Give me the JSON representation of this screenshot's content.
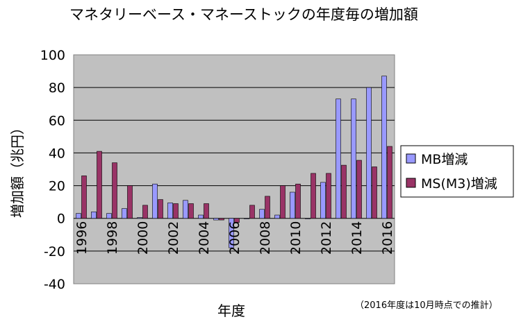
{
  "chart_data": {
    "type": "bar",
    "title": "マネタリーベース・マネーストックの年度毎の増加額",
    "xlabel": "年度",
    "ylabel": "増加額（兆円）",
    "note": "（2016年度は10月時点での推計）",
    "ylim": [
      -40,
      100
    ],
    "yticks": [
      -40,
      -20,
      0,
      20,
      40,
      60,
      80,
      100
    ],
    "grid": true,
    "legend_position": "right",
    "categories": [
      "1996",
      "1997",
      "1998",
      "1999",
      "2000",
      "2001",
      "2002",
      "2003",
      "2004",
      "2005",
      "2006",
      "2007",
      "2008",
      "2009",
      "2010",
      "2011",
      "2012",
      "2013",
      "2014",
      "2015",
      "2016"
    ],
    "xtick_labels": [
      "1996",
      "",
      "1998",
      "",
      "2000",
      "",
      "2002",
      "",
      "2004",
      "",
      "2006",
      "",
      "2008",
      "",
      "2010",
      "",
      "2012",
      "",
      "2014",
      "",
      "2016"
    ],
    "series": [
      {
        "name": "MB増減",
        "color": "#9999ff",
        "values": [
          3,
          4,
          3,
          6,
          0.5,
          21,
          9.5,
          11,
          2,
          -1,
          -18,
          0,
          5.5,
          2,
          16,
          0,
          22,
          73,
          73,
          80,
          87
        ]
      },
      {
        "name": "MS(M3)増減",
        "color": "#993366",
        "values": [
          26,
          41,
          34,
          20,
          8,
          11.5,
          9,
          9,
          9,
          -1,
          -2.5,
          8,
          13.5,
          20,
          21,
          27.5,
          27.5,
          32.5,
          35.5,
          31.5,
          44
        ]
      }
    ]
  }
}
